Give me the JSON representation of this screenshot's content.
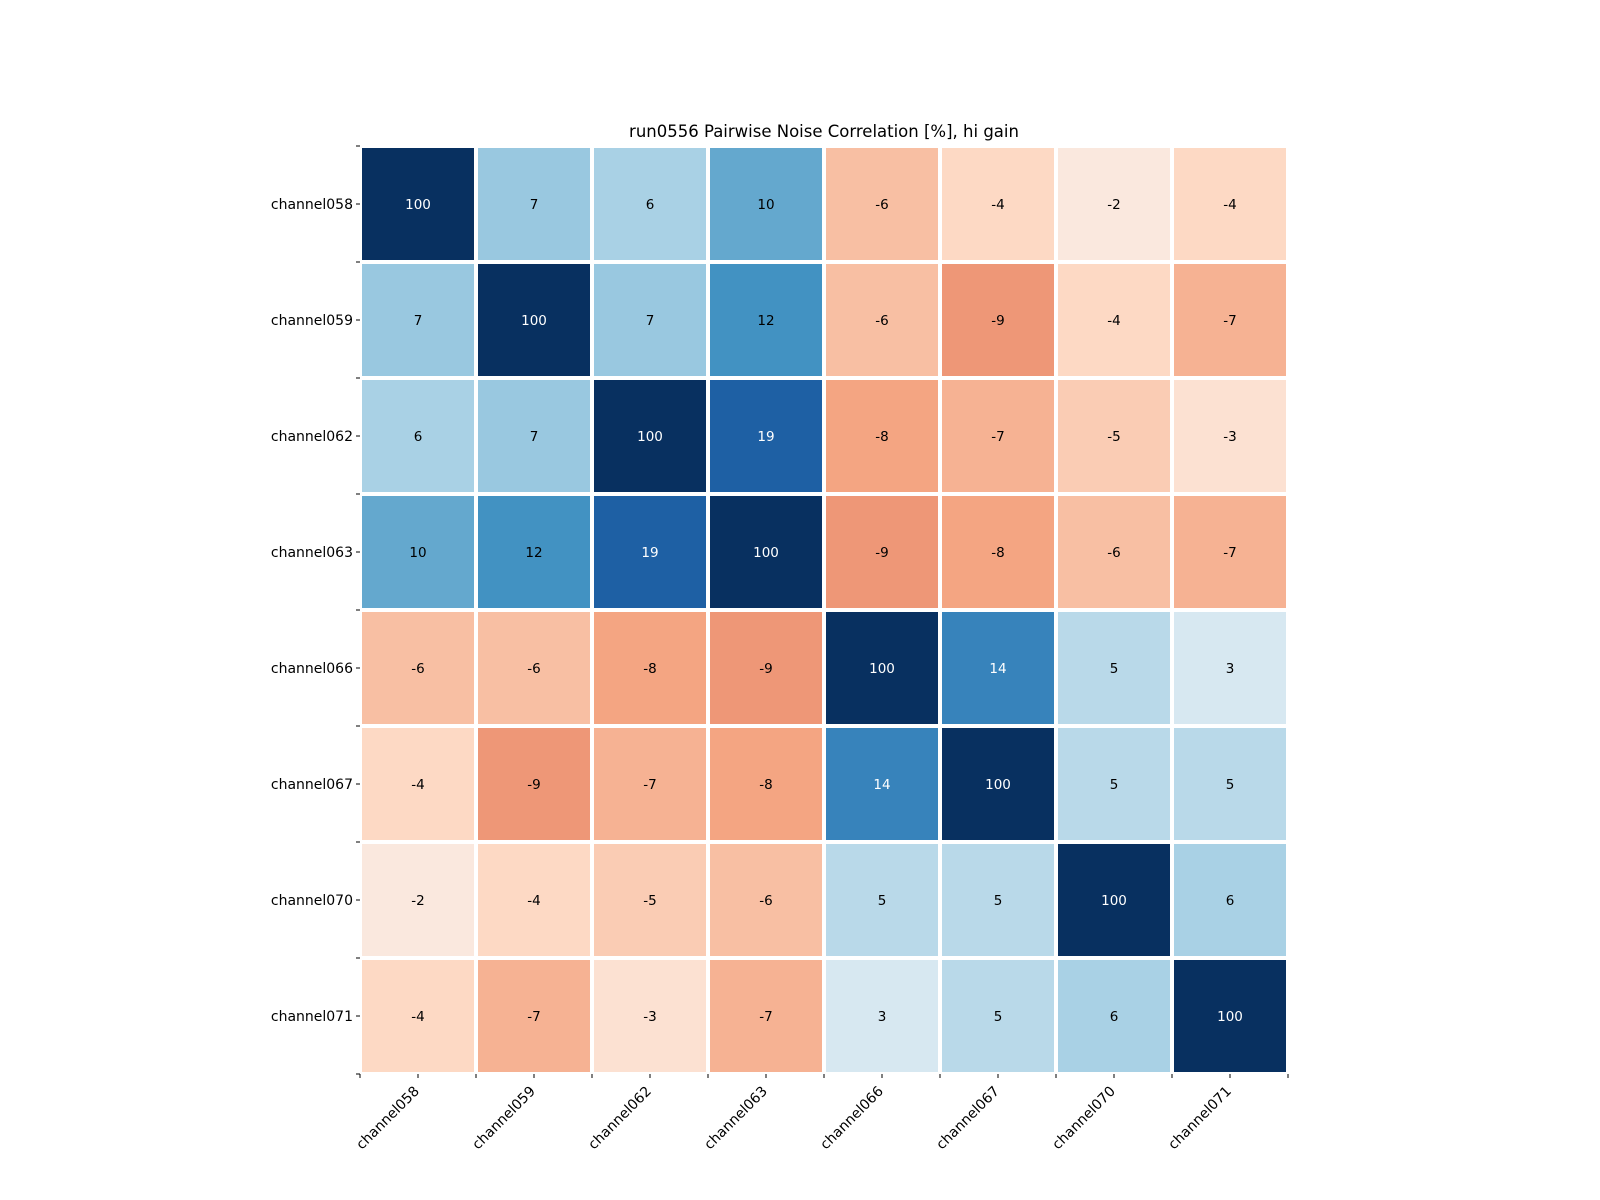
{
  "chart_data": {
    "type": "heatmap",
    "title": "run0556 Pairwise Noise Correlation [%], hi gain",
    "xlabel": "",
    "ylabel": "",
    "rows": [
      "channel058",
      "channel059",
      "channel062",
      "channel063",
      "channel066",
      "channel067",
      "channel070",
      "channel071"
    ],
    "columns": [
      "channel058",
      "channel059",
      "channel062",
      "channel063",
      "channel066",
      "channel067",
      "channel070",
      "channel071"
    ],
    "values": [
      [
        100,
        7,
        6,
        10,
        -6,
        -4,
        -2,
        -4
      ],
      [
        7,
        100,
        7,
        12,
        -6,
        -9,
        -4,
        -7
      ],
      [
        6,
        7,
        100,
        19,
        -8,
        -7,
        -5,
        -3
      ],
      [
        10,
        12,
        19,
        100,
        -9,
        -8,
        -6,
        -7
      ],
      [
        -6,
        -6,
        -8,
        -9,
        100,
        14,
        5,
        3
      ],
      [
        -4,
        -9,
        -7,
        -8,
        14,
        100,
        5,
        5
      ],
      [
        -2,
        -4,
        -5,
        -6,
        5,
        5,
        100,
        6
      ],
      [
        -4,
        -7,
        -3,
        -7,
        3,
        5,
        6,
        100
      ]
    ],
    "colormap": "RdBu (red negative, blue positive)",
    "colorbar": false,
    "grid": false
  }
}
